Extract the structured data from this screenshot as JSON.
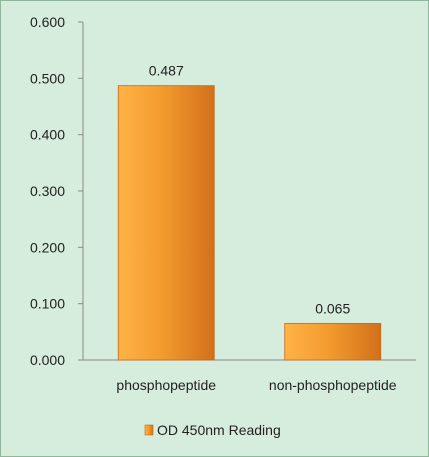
{
  "chart_data": {
    "type": "bar",
    "categories": [
      "phosphopeptide",
      "non-phosphopeptide"
    ],
    "series": [
      {
        "name": "OD 450nm Reading",
        "values": [
          0.487,
          0.065
        ]
      }
    ],
    "data_labels": [
      "0.487",
      "0.065"
    ],
    "yticks": [
      "0.000",
      "0.100",
      "0.200",
      "0.300",
      "0.400",
      "0.500",
      "0.600"
    ],
    "ylim": [
      0,
      0.6
    ],
    "title": "",
    "xlabel": "",
    "ylabel": "",
    "grid": false,
    "legend_position": "bottom",
    "colors": {
      "bar_light": "#ffb347",
      "bar": "#f39b2e",
      "bar_dark": "#d2701a",
      "background": "#d6ecdc",
      "axis": "#8a8a8a"
    }
  }
}
